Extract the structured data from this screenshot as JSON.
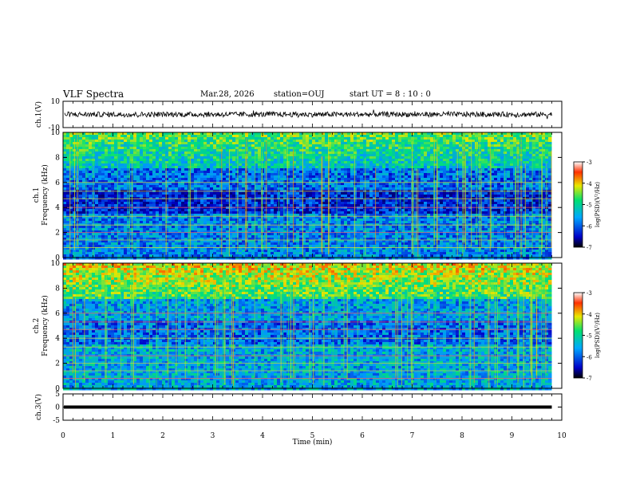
{
  "header": {
    "title": "VLF Spectra",
    "date": "Mar.28, 2026",
    "station": "station=OUJ",
    "start": "start  UT =   8 : 10 : 0"
  },
  "colors": {
    "axis": "#000000",
    "background": "#ffffff"
  },
  "chart_data": [
    {
      "type": "line",
      "name": "ch1-waveform",
      "ylabel": "ch.1(V)",
      "ylim": [
        -10,
        10
      ],
      "y_tick_labels": [
        "10",
        "-10"
      ],
      "y_ticks": [
        10,
        -10
      ],
      "xlim": [
        0,
        10
      ],
      "amplitude_approx": 2
    },
    {
      "type": "heatmap",
      "name": "ch1-spectrogram",
      "ylabel_line1": "ch.1",
      "ylabel_line2": "Frequency (kHz)",
      "ylim": [
        0,
        10
      ],
      "y_tick_labels": [
        "10",
        "8",
        "6",
        "4",
        "2",
        "0"
      ],
      "y_ticks": [
        10,
        8,
        6,
        4,
        2,
        0
      ],
      "xlim": [
        0,
        10
      ],
      "data_end_min": 9.8,
      "colorbar": {
        "label": "log(PSD)(V²/Hz)",
        "range": [
          -7,
          -3
        ],
        "tick_labels": [
          "-3",
          "-4",
          "-5",
          "-6",
          "-7"
        ],
        "ticks": [
          -3,
          -4,
          -5,
          -6,
          -7
        ]
      }
    },
    {
      "type": "heatmap",
      "name": "ch2-spectrogram",
      "ylabel_line1": "ch.2",
      "ylabel_line2": "Frequency (kHz)",
      "ylim": [
        0,
        10
      ],
      "y_tick_labels": [
        "10",
        "8",
        "6",
        "4",
        "2",
        "0"
      ],
      "y_ticks": [
        10,
        8,
        6,
        4,
        2,
        0
      ],
      "xlim": [
        0,
        10
      ],
      "data_end_min": 9.8,
      "colorbar": {
        "label": "log(PSD)(V²/Hz)",
        "range": [
          -7,
          -3
        ],
        "tick_labels": [
          "-3",
          "-4",
          "-5",
          "-6",
          "-7"
        ],
        "ticks": [
          -3,
          -4,
          -5,
          -6,
          -7
        ]
      }
    },
    {
      "type": "line",
      "name": "ch3-waveform",
      "ylabel": "ch.3(V)",
      "ylim": [
        -5,
        5
      ],
      "y_tick_labels": [
        "5",
        "0",
        "-5"
      ],
      "y_ticks": [
        5,
        0,
        -5
      ],
      "xlim": [
        0,
        10
      ],
      "constant_value": 0
    }
  ],
  "x_axis": {
    "label": "Time (min)",
    "range": [
      0,
      10
    ],
    "ticks": [
      0,
      1,
      2,
      3,
      4,
      5,
      6,
      7,
      8,
      9,
      10
    ],
    "tick_labels": [
      "0",
      "1",
      "2",
      "3",
      "4",
      "5",
      "6",
      "7",
      "8",
      "9",
      "10"
    ]
  }
}
